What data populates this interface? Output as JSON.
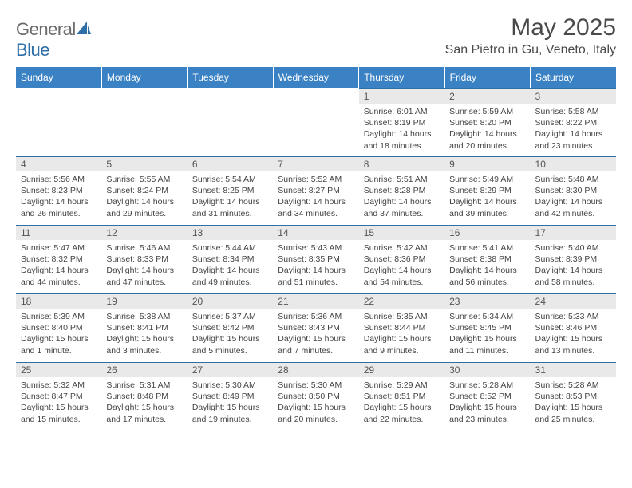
{
  "logo": {
    "part1": "General",
    "part2": "Blue"
  },
  "title": "May 2025",
  "location": "San Pietro in Gu, Veneto, Italy",
  "headers": [
    "Sunday",
    "Monday",
    "Tuesday",
    "Wednesday",
    "Thursday",
    "Friday",
    "Saturday"
  ],
  "colors": {
    "header_bg": "#3b82c4",
    "header_fg": "#ffffff",
    "daynum_bg": "#e9e9e9",
    "border_top": "#2f6fa8",
    "logo_gray": "#6a6a6a",
    "logo_blue": "#2f6fa8"
  },
  "weeks": [
    [
      {
        "empty": true
      },
      {
        "empty": true
      },
      {
        "empty": true
      },
      {
        "empty": true
      },
      {
        "num": "1",
        "sunrise": "Sunrise: 6:01 AM",
        "sunset": "Sunset: 8:19 PM",
        "daylight": "Daylight: 14 hours and 18 minutes."
      },
      {
        "num": "2",
        "sunrise": "Sunrise: 5:59 AM",
        "sunset": "Sunset: 8:20 PM",
        "daylight": "Daylight: 14 hours and 20 minutes."
      },
      {
        "num": "3",
        "sunrise": "Sunrise: 5:58 AM",
        "sunset": "Sunset: 8:22 PM",
        "daylight": "Daylight: 14 hours and 23 minutes."
      }
    ],
    [
      {
        "num": "4",
        "sunrise": "Sunrise: 5:56 AM",
        "sunset": "Sunset: 8:23 PM",
        "daylight": "Daylight: 14 hours and 26 minutes."
      },
      {
        "num": "5",
        "sunrise": "Sunrise: 5:55 AM",
        "sunset": "Sunset: 8:24 PM",
        "daylight": "Daylight: 14 hours and 29 minutes."
      },
      {
        "num": "6",
        "sunrise": "Sunrise: 5:54 AM",
        "sunset": "Sunset: 8:25 PM",
        "daylight": "Daylight: 14 hours and 31 minutes."
      },
      {
        "num": "7",
        "sunrise": "Sunrise: 5:52 AM",
        "sunset": "Sunset: 8:27 PM",
        "daylight": "Daylight: 14 hours and 34 minutes."
      },
      {
        "num": "8",
        "sunrise": "Sunrise: 5:51 AM",
        "sunset": "Sunset: 8:28 PM",
        "daylight": "Daylight: 14 hours and 37 minutes."
      },
      {
        "num": "9",
        "sunrise": "Sunrise: 5:49 AM",
        "sunset": "Sunset: 8:29 PM",
        "daylight": "Daylight: 14 hours and 39 minutes."
      },
      {
        "num": "10",
        "sunrise": "Sunrise: 5:48 AM",
        "sunset": "Sunset: 8:30 PM",
        "daylight": "Daylight: 14 hours and 42 minutes."
      }
    ],
    [
      {
        "num": "11",
        "sunrise": "Sunrise: 5:47 AM",
        "sunset": "Sunset: 8:32 PM",
        "daylight": "Daylight: 14 hours and 44 minutes."
      },
      {
        "num": "12",
        "sunrise": "Sunrise: 5:46 AM",
        "sunset": "Sunset: 8:33 PM",
        "daylight": "Daylight: 14 hours and 47 minutes."
      },
      {
        "num": "13",
        "sunrise": "Sunrise: 5:44 AM",
        "sunset": "Sunset: 8:34 PM",
        "daylight": "Daylight: 14 hours and 49 minutes."
      },
      {
        "num": "14",
        "sunrise": "Sunrise: 5:43 AM",
        "sunset": "Sunset: 8:35 PM",
        "daylight": "Daylight: 14 hours and 51 minutes."
      },
      {
        "num": "15",
        "sunrise": "Sunrise: 5:42 AM",
        "sunset": "Sunset: 8:36 PM",
        "daylight": "Daylight: 14 hours and 54 minutes."
      },
      {
        "num": "16",
        "sunrise": "Sunrise: 5:41 AM",
        "sunset": "Sunset: 8:38 PM",
        "daylight": "Daylight: 14 hours and 56 minutes."
      },
      {
        "num": "17",
        "sunrise": "Sunrise: 5:40 AM",
        "sunset": "Sunset: 8:39 PM",
        "daylight": "Daylight: 14 hours and 58 minutes."
      }
    ],
    [
      {
        "num": "18",
        "sunrise": "Sunrise: 5:39 AM",
        "sunset": "Sunset: 8:40 PM",
        "daylight": "Daylight: 15 hours and 1 minute."
      },
      {
        "num": "19",
        "sunrise": "Sunrise: 5:38 AM",
        "sunset": "Sunset: 8:41 PM",
        "daylight": "Daylight: 15 hours and 3 minutes."
      },
      {
        "num": "20",
        "sunrise": "Sunrise: 5:37 AM",
        "sunset": "Sunset: 8:42 PM",
        "daylight": "Daylight: 15 hours and 5 minutes."
      },
      {
        "num": "21",
        "sunrise": "Sunrise: 5:36 AM",
        "sunset": "Sunset: 8:43 PM",
        "daylight": "Daylight: 15 hours and 7 minutes."
      },
      {
        "num": "22",
        "sunrise": "Sunrise: 5:35 AM",
        "sunset": "Sunset: 8:44 PM",
        "daylight": "Daylight: 15 hours and 9 minutes."
      },
      {
        "num": "23",
        "sunrise": "Sunrise: 5:34 AM",
        "sunset": "Sunset: 8:45 PM",
        "daylight": "Daylight: 15 hours and 11 minutes."
      },
      {
        "num": "24",
        "sunrise": "Sunrise: 5:33 AM",
        "sunset": "Sunset: 8:46 PM",
        "daylight": "Daylight: 15 hours and 13 minutes."
      }
    ],
    [
      {
        "num": "25",
        "sunrise": "Sunrise: 5:32 AM",
        "sunset": "Sunset: 8:47 PM",
        "daylight": "Daylight: 15 hours and 15 minutes."
      },
      {
        "num": "26",
        "sunrise": "Sunrise: 5:31 AM",
        "sunset": "Sunset: 8:48 PM",
        "daylight": "Daylight: 15 hours and 17 minutes."
      },
      {
        "num": "27",
        "sunrise": "Sunrise: 5:30 AM",
        "sunset": "Sunset: 8:49 PM",
        "daylight": "Daylight: 15 hours and 19 minutes."
      },
      {
        "num": "28",
        "sunrise": "Sunrise: 5:30 AM",
        "sunset": "Sunset: 8:50 PM",
        "daylight": "Daylight: 15 hours and 20 minutes."
      },
      {
        "num": "29",
        "sunrise": "Sunrise: 5:29 AM",
        "sunset": "Sunset: 8:51 PM",
        "daylight": "Daylight: 15 hours and 22 minutes."
      },
      {
        "num": "30",
        "sunrise": "Sunrise: 5:28 AM",
        "sunset": "Sunset: 8:52 PM",
        "daylight": "Daylight: 15 hours and 23 minutes."
      },
      {
        "num": "31",
        "sunrise": "Sunrise: 5:28 AM",
        "sunset": "Sunset: 8:53 PM",
        "daylight": "Daylight: 15 hours and 25 minutes."
      }
    ]
  ]
}
